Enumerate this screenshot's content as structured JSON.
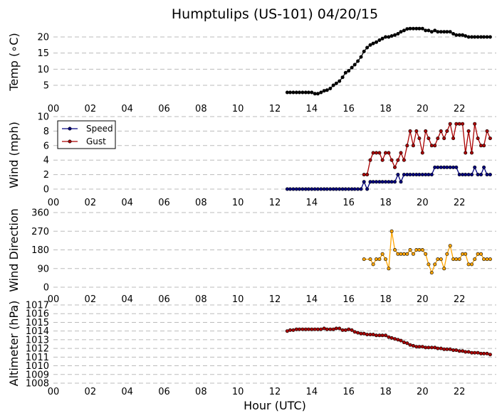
{
  "chart_data": {
    "type": "line",
    "title": "Humptulips (US-101) 04/20/15",
    "xlabel": "Hour (UTC)",
    "x_ticks": [
      "00",
      "02",
      "04",
      "06",
      "08",
      "10",
      "12",
      "14",
      "16",
      "18",
      "20",
      "22"
    ],
    "xlim": [
      0,
      24
    ],
    "grid": "horizontal dashed",
    "panels": [
      {
        "ylabel": "Temp (∘C)",
        "ylim": [
          0,
          23
        ],
        "y_ticks": [
          5,
          10,
          15,
          20
        ],
        "series": [
          {
            "color": "#000000",
            "x": [
              12.67,
              12.83,
              13.0,
              13.17,
              13.33,
              13.5,
              13.67,
              13.83,
              14.0,
              14.17,
              14.33,
              14.5,
              14.67,
              14.83,
              15.0,
              15.17,
              15.33,
              15.5,
              15.67,
              15.83,
              16.0,
              16.17,
              16.33,
              16.5,
              16.67,
              16.83,
              17.0,
              17.17,
              17.33,
              17.5,
              17.67,
              17.83,
              18.0,
              18.17,
              18.33,
              18.5,
              18.67,
              18.83,
              19.0,
              19.17,
              19.33,
              19.5,
              19.67,
              19.83,
              20.0,
              20.17,
              20.33,
              20.5,
              20.67,
              20.83,
              21.0,
              21.17,
              21.33,
              21.5,
              21.67,
              21.83,
              22.0,
              22.17,
              22.33,
              22.5,
              22.67,
              22.83,
              23.0,
              23.17,
              23.33,
              23.5,
              23.67
            ],
            "y": [
              2.8,
              2.8,
              2.8,
              2.8,
              2.8,
              2.8,
              2.8,
              2.8,
              2.8,
              2.4,
              2.4,
              2.8,
              3.3,
              3.5,
              4.0,
              5.0,
              5.6,
              6.3,
              7.5,
              8.9,
              9.5,
              10.5,
              11.4,
              12.5,
              13.8,
              15.5,
              16.7,
              17.5,
              18.0,
              18.4,
              19.0,
              19.5,
              20.0,
              20.0,
              20.3,
              20.6,
              21.0,
              21.6,
              22.0,
              22.5,
              22.6,
              22.6,
              22.6,
              22.6,
              22.6,
              22.0,
              22.0,
              21.6,
              22.0,
              21.6,
              21.6,
              21.6,
              21.6,
              21.6,
              21.0,
              20.6,
              20.6,
              20.6,
              20.3,
              20.0,
              20.0,
              20.0,
              20.0,
              20.0,
              20.0,
              20.0,
              20.0
            ]
          }
        ]
      },
      {
        "ylabel": "Wind (mph)",
        "ylim": [
          -0.5,
          10
        ],
        "y_ticks": [
          0,
          2,
          4,
          6,
          8,
          10
        ],
        "legend": "top-left",
        "series": [
          {
            "name": "Speed",
            "color": "#000080",
            "x": [
              12.67,
              12.83,
              13.0,
              13.17,
              13.33,
              13.5,
              13.67,
              13.83,
              14.0,
              14.17,
              14.33,
              14.5,
              14.67,
              14.83,
              15.0,
              15.17,
              15.33,
              15.5,
              15.67,
              15.83,
              16.0,
              16.17,
              16.33,
              16.5,
              16.67,
              16.83,
              17.0,
              17.17,
              17.33,
              17.5,
              17.67,
              17.83,
              18.0,
              18.17,
              18.33,
              18.5,
              18.67,
              18.83,
              19.0,
              19.17,
              19.33,
              19.5,
              19.67,
              19.83,
              20.0,
              20.17,
              20.33,
              20.5,
              20.67,
              20.83,
              21.0,
              21.17,
              21.33,
              21.5,
              21.67,
              21.83,
              22.0,
              22.17,
              22.33,
              22.5,
              22.67,
              22.83,
              23.0,
              23.17,
              23.33,
              23.5,
              23.67
            ],
            "y": [
              0,
              0,
              0,
              0,
              0,
              0,
              0,
              0,
              0,
              0,
              0,
              0,
              0,
              0,
              0,
              0,
              0,
              0,
              0,
              0,
              0,
              0,
              0,
              0,
              0,
              1,
              0,
              1,
              1,
              1,
              1,
              1,
              1,
              1,
              1,
              1,
              2,
              1,
              2,
              2,
              2,
              2,
              2,
              2,
              2,
              2,
              2,
              2,
              3,
              3,
              3,
              3,
              3,
              3,
              3,
              3,
              2,
              2,
              2,
              2,
              2,
              3,
              2,
              2,
              3,
              2,
              2
            ]
          },
          {
            "name": "Gust",
            "color": "#aa0000",
            "x": [
              16.83,
              17.0,
              17.17,
              17.33,
              17.5,
              17.67,
              17.83,
              18.0,
              18.17,
              18.33,
              18.5,
              18.67,
              18.83,
              19.0,
              19.17,
              19.33,
              19.5,
              19.67,
              19.83,
              20.0,
              20.17,
              20.33,
              20.5,
              20.67,
              20.83,
              21.0,
              21.17,
              21.33,
              21.5,
              21.67,
              21.83,
              22.0,
              22.17,
              22.33,
              22.5,
              22.67,
              22.83,
              23.0,
              23.17,
              23.33,
              23.5,
              23.67
            ],
            "y": [
              2,
              2,
              4,
              5,
              5,
              5,
              4,
              5,
              5,
              4,
              3,
              4,
              5,
              4,
              6,
              8,
              6,
              8,
              7,
              5,
              8,
              7,
              6,
              6,
              7,
              8,
              7,
              8,
              9,
              7,
              9,
              9,
              9,
              5,
              8,
              5,
              9,
              7,
              6,
              6,
              8,
              7
            ]
          }
        ]
      },
      {
        "ylabel": "Wind Direction",
        "ylim": [
          -10,
          360
        ],
        "y_ticks": [
          0,
          90,
          180,
          270,
          360
        ],
        "series": [
          {
            "color": "#ffa500",
            "x": [
              16.83,
              17.17,
              17.33,
              17.5,
              17.67,
              17.83,
              18.0,
              18.17,
              18.33,
              18.5,
              18.67,
              18.83,
              19.0,
              19.17,
              19.33,
              19.5,
              19.67,
              19.83,
              20.0,
              20.17,
              20.33,
              20.5,
              20.67,
              20.83,
              21.0,
              21.17,
              21.33,
              21.5,
              21.67,
              21.83,
              22.0,
              22.17,
              22.33,
              22.5,
              22.67,
              22.83,
              23.0,
              23.17,
              23.33,
              23.5,
              23.67
            ],
            "y": [
              135,
              135,
              110,
              135,
              135,
              160,
              135,
              90,
              270,
              180,
              160,
              160,
              160,
              160,
              180,
              160,
              180,
              180,
              180,
              160,
              110,
              70,
              110,
              135,
              135,
              90,
              160,
              200,
              135,
              135,
              135,
              160,
              160,
              110,
              110,
              135,
              160,
              160,
              135,
              135,
              135
            ]
          }
        ]
      },
      {
        "ylabel": "Altimeter (hPa)",
        "ylim": [
          1008,
          1017
        ],
        "y_ticks": [
          1008,
          1009,
          1010,
          1011,
          1012,
          1013,
          1014,
          1015,
          1016,
          1017
        ],
        "series": [
          {
            "color": "#aa0000",
            "x": [
              12.67,
              12.83,
              13.0,
              13.17,
              13.33,
              13.5,
              13.67,
              13.83,
              14.0,
              14.17,
              14.33,
              14.5,
              14.67,
              14.83,
              15.0,
              15.17,
              15.33,
              15.5,
              15.67,
              15.83,
              16.0,
              16.17,
              16.33,
              16.5,
              16.67,
              16.83,
              17.0,
              17.17,
              17.33,
              17.5,
              17.67,
              17.83,
              18.0,
              18.17,
              18.33,
              18.5,
              18.67,
              18.83,
              19.0,
              19.17,
              19.33,
              19.5,
              19.67,
              19.83,
              20.0,
              20.17,
              20.33,
              20.5,
              20.67,
              20.83,
              21.0,
              21.17,
              21.33,
              21.5,
              21.67,
              21.83,
              22.0,
              22.17,
              22.33,
              22.5,
              22.67,
              22.83,
              23.0,
              23.17,
              23.33,
              23.5,
              23.67
            ],
            "y": [
              1014.0,
              1014.1,
              1014.1,
              1014.2,
              1014.2,
              1014.2,
              1014.2,
              1014.2,
              1014.2,
              1014.2,
              1014.2,
              1014.2,
              1014.3,
              1014.2,
              1014.2,
              1014.2,
              1014.3,
              1014.3,
              1014.1,
              1014.1,
              1014.2,
              1014.1,
              1013.9,
              1013.8,
              1013.7,
              1013.7,
              1013.6,
              1013.6,
              1013.6,
              1013.5,
              1013.5,
              1013.5,
              1013.5,
              1013.3,
              1013.2,
              1013.1,
              1013.0,
              1012.9,
              1012.7,
              1012.6,
              1012.4,
              1012.3,
              1012.2,
              1012.2,
              1012.2,
              1012.1,
              1012.1,
              1012.1,
              1012.1,
              1012.0,
              1012.0,
              1011.9,
              1011.9,
              1011.9,
              1011.8,
              1011.8,
              1011.7,
              1011.7,
              1011.6,
              1011.6,
              1011.5,
              1011.5,
              1011.5,
              1011.4,
              1011.4,
              1011.4,
              1011.3
            ]
          }
        ]
      }
    ]
  }
}
